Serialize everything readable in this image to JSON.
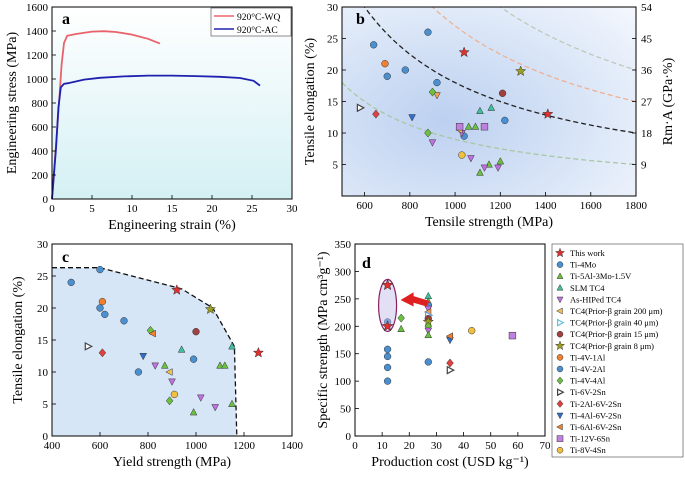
{
  "chart_data": [
    {
      "panel": "a",
      "type": "line",
      "xlabel": "Engineering strain (%)",
      "ylabel": "Engineering stress (MPa)",
      "xlim": [
        0,
        30
      ],
      "ylim": [
        0,
        1600
      ],
      "xticks": [
        0,
        5,
        10,
        15,
        20,
        25,
        30
      ],
      "yticks": [
        0,
        200,
        400,
        600,
        800,
        1000,
        1200,
        1400,
        1600
      ],
      "legend": "top-right",
      "series": [
        {
          "name": "920°C-WQ",
          "color": "#e8636b",
          "points": [
            [
              0,
              0
            ],
            [
              0.5,
              450
            ],
            [
              0.9,
              820
            ],
            [
              1.2,
              1120
            ],
            [
              1.5,
              1300
            ],
            [
              1.9,
              1360
            ],
            [
              3,
              1375
            ],
            [
              5,
              1395
            ],
            [
              6.5,
              1398
            ],
            [
              8,
              1392
            ],
            [
              10,
              1370
            ],
            [
              12,
              1335
            ],
            [
              13.5,
              1295
            ]
          ]
        },
        {
          "name": "920°C-AC",
          "color": "#2020b0",
          "points": [
            [
              0,
              0
            ],
            [
              0.5,
              420
            ],
            [
              0.8,
              760
            ],
            [
              1.1,
              930
            ],
            [
              1.5,
              960
            ],
            [
              2,
              965
            ],
            [
              4,
              995
            ],
            [
              6,
              1010
            ],
            [
              9,
              1022
            ],
            [
              12,
              1028
            ],
            [
              15,
              1028
            ],
            [
              18,
              1024
            ],
            [
              21,
              1018
            ],
            [
              23.5,
              1008
            ],
            [
              25.2,
              985
            ],
            [
              26,
              945
            ]
          ]
        }
      ]
    },
    {
      "panel": "b",
      "type": "scatter",
      "xlabel": "Tensile strength (MPa)",
      "ylabel": "Tensile elongation (%)",
      "y2label": "Rm·A (GPa·%)",
      "xlim": [
        500,
        1800
      ],
      "ylim": [
        0,
        30
      ],
      "y2lim": [
        0,
        54
      ],
      "xticks": [
        600,
        800,
        1000,
        1200,
        1400,
        1600,
        1800
      ],
      "yticks": [
        5,
        10,
        15,
        20,
        25,
        30
      ],
      "y2ticks": [
        9,
        18,
        27,
        36,
        45,
        54
      ],
      "iso_curves": [
        {
          "value": 9,
          "color": "#a8c8a0"
        },
        {
          "value": 18,
          "color": "#222222"
        },
        {
          "value": 27,
          "color": "#f0b090"
        },
        {
          "value": 36,
          "color": "#c0c8b8"
        },
        {
          "value": 54,
          "color": "#cc2288"
        }
      ],
      "points": [
        {
          "x": 1040,
          "y": 22.8,
          "m": "star",
          "c": "#e03030"
        },
        {
          "x": 1410,
          "y": 13,
          "m": "star",
          "c": "#e03030"
        },
        {
          "x": 640,
          "y": 24,
          "m": "circ",
          "c": "#4a8fd0"
        },
        {
          "x": 700,
          "y": 19,
          "m": "circ",
          "c": "#4a8fd0"
        },
        {
          "x": 780,
          "y": 20,
          "m": "circ",
          "c": "#4a8fd0"
        },
        {
          "x": 880,
          "y": 26,
          "m": "circ",
          "c": "#4a8fd0"
        },
        {
          "x": 920,
          "y": 18,
          "m": "circ",
          "c": "#4a8fd0"
        },
        {
          "x": 1040,
          "y": 9.5,
          "m": "circ",
          "c": "#4a8fd0"
        },
        {
          "x": 1220,
          "y": 12,
          "m": "circ",
          "c": "#4a8fd0"
        },
        {
          "x": 690,
          "y": 21,
          "m": "circ",
          "c": "#f08030"
        },
        {
          "x": 1030,
          "y": 6.5,
          "m": "circ",
          "c": "#f0c040"
        },
        {
          "x": 1210,
          "y": 16.3,
          "m": "circ",
          "c": "#a04040"
        },
        {
          "x": 1060,
          "y": 11,
          "m": "triu",
          "c": "#6cc040"
        },
        {
          "x": 1090,
          "y": 11,
          "m": "triu",
          "c": "#6cc040"
        },
        {
          "x": 1110,
          "y": 3.7,
          "m": "triu",
          "c": "#6cc040"
        },
        {
          "x": 1150,
          "y": 5,
          "m": "triu",
          "c": "#6cc040"
        },
        {
          "x": 1200,
          "y": 5.5,
          "m": "triu",
          "c": "#6cc040"
        },
        {
          "x": 1110,
          "y": 13.5,
          "m": "triu",
          "c": "#40c0a0"
        },
        {
          "x": 1160,
          "y": 14,
          "m": "triu",
          "c": "#40c0a0"
        },
        {
          "x": 900,
          "y": 8.5,
          "m": "trid",
          "c": "#c070e0"
        },
        {
          "x": 1030,
          "y": 10,
          "m": "trid",
          "c": "#c070e0"
        },
        {
          "x": 1070,
          "y": 6,
          "m": "trid",
          "c": "#c070e0"
        },
        {
          "x": 1130,
          "y": 4.5,
          "m": "trid",
          "c": "#c070e0"
        },
        {
          "x": 1190,
          "y": 4.5,
          "m": "trid",
          "c": "#c070e0"
        },
        {
          "x": 1020,
          "y": 10.5,
          "m": "tril",
          "c": "#f0c050"
        },
        {
          "x": 920,
          "y": 16,
          "m": "trid",
          "c": "#f0a050"
        },
        {
          "x": 900,
          "y": 16.5,
          "m": "dia",
          "c": "#6cc040"
        },
        {
          "x": 880,
          "y": 10,
          "m": "dia",
          "c": "#6cc040"
        },
        {
          "x": 580,
          "y": 14,
          "m": "trir",
          "c": "#444444"
        },
        {
          "x": 650,
          "y": 13,
          "m": "dia",
          "c": "#e04040"
        },
        {
          "x": 810,
          "y": 12.5,
          "m": "trid",
          "c": "#3070d0"
        },
        {
          "x": 1290,
          "y": 19.8,
          "m": "star",
          "c": "#a0a020"
        },
        {
          "x": 1020,
          "y": 11,
          "m": "sq",
          "c": "#c080e0"
        },
        {
          "x": 1130,
          "y": 11,
          "m": "sq",
          "c": "#c080e0"
        }
      ]
    },
    {
      "panel": "c",
      "type": "scatter",
      "xlabel": "Yield strength (MPa)",
      "ylabel": "Tensile elongation (%)",
      "xlim": [
        400,
        1400
      ],
      "ylim": [
        0,
        30
      ],
      "xticks": [
        400,
        600,
        800,
        1000,
        1200,
        1400
      ],
      "yticks": [
        0,
        5,
        10,
        15,
        20,
        25,
        30
      ],
      "envelope": [
        [
          400,
          26.3
        ],
        [
          600,
          26.3
        ],
        [
          940,
          23
        ],
        [
          1070,
          20
        ],
        [
          1160,
          14
        ],
        [
          1170,
          0
        ]
      ],
      "points": [
        {
          "x": 920,
          "y": 22.8,
          "m": "star",
          "c": "#e03030"
        },
        {
          "x": 1260,
          "y": 13,
          "m": "star",
          "c": "#e03030"
        },
        {
          "x": 480,
          "y": 24,
          "m": "circ",
          "c": "#4a8fd0"
        },
        {
          "x": 600,
          "y": 26,
          "m": "circ",
          "c": "#4a8fd0"
        },
        {
          "x": 600,
          "y": 20,
          "m": "circ",
          "c": "#4a8fd0"
        },
        {
          "x": 620,
          "y": 19,
          "m": "circ",
          "c": "#4a8fd0"
        },
        {
          "x": 700,
          "y": 18,
          "m": "circ",
          "c": "#4a8fd0"
        },
        {
          "x": 760,
          "y": 10,
          "m": "circ",
          "c": "#4a8fd0"
        },
        {
          "x": 990,
          "y": 12,
          "m": "circ",
          "c": "#4a8fd0"
        },
        {
          "x": 610,
          "y": 21,
          "m": "circ",
          "c": "#f08030"
        },
        {
          "x": 910,
          "y": 6.5,
          "m": "circ",
          "c": "#f0c040"
        },
        {
          "x": 1000,
          "y": 16.3,
          "m": "circ",
          "c": "#a04040"
        },
        {
          "x": 870,
          "y": 11,
          "m": "triu",
          "c": "#6cc040"
        },
        {
          "x": 1100,
          "y": 11,
          "m": "triu",
          "c": "#6cc040"
        },
        {
          "x": 1120,
          "y": 11,
          "m": "triu",
          "c": "#6cc040"
        },
        {
          "x": 1150,
          "y": 5,
          "m": "triu",
          "c": "#6cc040"
        },
        {
          "x": 990,
          "y": 3.7,
          "m": "triu",
          "c": "#6cc040"
        },
        {
          "x": 940,
          "y": 13.5,
          "m": "triu",
          "c": "#40c0a0"
        },
        {
          "x": 1150,
          "y": 14,
          "m": "triu",
          "c": "#40c0a0"
        },
        {
          "x": 900,
          "y": 8.5,
          "m": "trid",
          "c": "#c070e0"
        },
        {
          "x": 1020,
          "y": 6,
          "m": "trid",
          "c": "#c070e0"
        },
        {
          "x": 1080,
          "y": 4.5,
          "m": "trid",
          "c": "#c070e0"
        },
        {
          "x": 830,
          "y": 11,
          "m": "trid",
          "c": "#c070e0"
        },
        {
          "x": 890,
          "y": 10,
          "m": "tril",
          "c": "#f0c050"
        },
        {
          "x": 810,
          "y": 16.5,
          "m": "dia",
          "c": "#6cc040"
        },
        {
          "x": 890,
          "y": 5.5,
          "m": "dia",
          "c": "#6cc040"
        },
        {
          "x": 550,
          "y": 14,
          "m": "trir",
          "c": "#444444"
        },
        {
          "x": 610,
          "y": 13,
          "m": "dia",
          "c": "#e04040"
        },
        {
          "x": 780,
          "y": 12.5,
          "m": "trid",
          "c": "#3070d0"
        },
        {
          "x": 1060,
          "y": 19.8,
          "m": "star",
          "c": "#a0a020"
        },
        {
          "x": 820,
          "y": 16,
          "m": "tril",
          "c": "#f08030"
        }
      ]
    },
    {
      "panel": "d",
      "type": "scatter",
      "xlabel": "Production cost (USD kg⁻¹)",
      "ylabel": "Specific strength (MPa cm³g⁻¹)",
      "xlim": [
        0,
        70
      ],
      "ylim": [
        0,
        350
      ],
      "xticks": [
        0,
        10,
        20,
        30,
        40,
        50,
        60,
        70
      ],
      "yticks": [
        0,
        50,
        100,
        150,
        200,
        250,
        300,
        350
      ],
      "highlight_x": 12,
      "points": [
        {
          "x": 12,
          "y": 275,
          "m": "star",
          "c": "#e03030"
        },
        {
          "x": 12,
          "y": 200,
          "m": "star",
          "c": "#e03030"
        },
        {
          "x": 12,
          "y": 100,
          "m": "circ",
          "c": "#4a8fd0"
        },
        {
          "x": 12,
          "y": 125,
          "m": "circ",
          "c": "#4a8fd0"
        },
        {
          "x": 12,
          "y": 145,
          "m": "circ",
          "c": "#4a8fd0"
        },
        {
          "x": 12,
          "y": 158,
          "m": "circ",
          "c": "#4a8fd0"
        },
        {
          "x": 12,
          "y": 208,
          "m": "circ",
          "c": "#4a8fd0"
        },
        {
          "x": 17,
          "y": 195,
          "m": "triu",
          "c": "#6cc040"
        },
        {
          "x": 17,
          "y": 215,
          "m": "dia",
          "c": "#6cc040"
        },
        {
          "x": 27,
          "y": 255,
          "m": "triu",
          "c": "#40c0a0"
        },
        {
          "x": 27,
          "y": 245,
          "m": "triu",
          "c": "#6cc040"
        },
        {
          "x": 27,
          "y": 238,
          "m": "circ",
          "c": "#4a8fd0"
        },
        {
          "x": 27,
          "y": 232,
          "m": "trid",
          "c": "#c070e0"
        },
        {
          "x": 27,
          "y": 226,
          "m": "tril",
          "c": "#f0a050"
        },
        {
          "x": 27,
          "y": 220,
          "m": "trir",
          "c": "#60a0e0"
        },
        {
          "x": 27,
          "y": 214,
          "m": "circ",
          "c": "#a04040"
        },
        {
          "x": 27,
          "y": 208,
          "m": "star",
          "c": "#a0a020"
        },
        {
          "x": 27,
          "y": 200,
          "m": "dia",
          "c": "#6cc040"
        },
        {
          "x": 27,
          "y": 192,
          "m": "trid",
          "c": "#c070e0"
        },
        {
          "x": 27,
          "y": 184,
          "m": "triu",
          "c": "#6cc040"
        },
        {
          "x": 27,
          "y": 135,
          "m": "circ",
          "c": "#4a8fd0"
        },
        {
          "x": 35,
          "y": 175,
          "m": "trid",
          "c": "#3070d0"
        },
        {
          "x": 35,
          "y": 182,
          "m": "tril",
          "c": "#f08030"
        },
        {
          "x": 35,
          "y": 133,
          "m": "dia",
          "c": "#e04040"
        },
        {
          "x": 35,
          "y": 120,
          "m": "trir",
          "c": "#444444"
        },
        {
          "x": 43,
          "y": 192,
          "m": "circ",
          "c": "#f0c040"
        },
        {
          "x": 58,
          "y": 183,
          "m": "sq",
          "c": "#c080e0"
        }
      ],
      "legend": {
        "placement": "right",
        "entries": [
          {
            "label": "This work",
            "m": "star",
            "c": "#e03030"
          },
          {
            "label": "Ti-4Mo",
            "m": "circ",
            "c": "#4a8fd0"
          },
          {
            "label": "Ti-5Al-3Mo-1.5V",
            "m": "triu",
            "c": "#6cc040"
          },
          {
            "label": "SLM TC4",
            "m": "triu",
            "c": "#40c0a0"
          },
          {
            "label": "As-HIPed TC4",
            "m": "trid",
            "c": "#c070e0"
          },
          {
            "label": "TC4(Prior-β grain 200 μm)",
            "m": "tril",
            "c": "#f0c050"
          },
          {
            "label": "TC4(Prior-β grain 40 μm)",
            "m": "trir",
            "c": "#60c0e0"
          },
          {
            "label": "TC4(Prior-β grain 15 μm)",
            "m": "circ",
            "c": "#a04040"
          },
          {
            "label": "TC4(Prior-β grain 8 μm)",
            "m": "star",
            "c": "#a0a020"
          },
          {
            "label": "Ti-4V-1Al",
            "m": "circ",
            "c": "#f08030"
          },
          {
            "label": "Ti-4V-2Al",
            "m": "circ",
            "c": "#4a8fd0"
          },
          {
            "label": "Ti-4V-4Al",
            "m": "dia",
            "c": "#6cc040"
          },
          {
            "label": "Ti-6V-2Sn",
            "m": "trir",
            "c": "#444444"
          },
          {
            "label": "Ti-2Al-6V-2Sn",
            "m": "dia",
            "c": "#e04040"
          },
          {
            "label": "Ti-4Al-6V-2Sn",
            "m": "trid",
            "c": "#3070d0"
          },
          {
            "label": "Ti-6Al-6V-2Sn",
            "m": "tril",
            "c": "#f08030"
          },
          {
            "label": "Ti-12V-6Sn",
            "m": "sq",
            "c": "#c080e0"
          },
          {
            "label": "Ti-8V-4Sn",
            "m": "circ",
            "c": "#f0c040"
          }
        ]
      }
    }
  ]
}
